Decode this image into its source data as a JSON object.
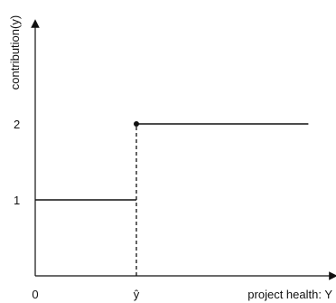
{
  "chart_data": {
    "type": "line",
    "xlabel": "project health: Y",
    "ylabel": "contribution(y)",
    "x_ticks": [
      {
        "value": 0,
        "label": "0"
      },
      {
        "value": 1,
        "label": "ŷ"
      }
    ],
    "y_ticks": [
      {
        "value": 1,
        "label": "1"
      },
      {
        "value": 2,
        "label": "2"
      }
    ],
    "xlim": [
      0,
      3
    ],
    "ylim": [
      0,
      2.6
    ],
    "series": [
      {
        "segments": [
          {
            "x": [
              0,
              1
            ],
            "y": [
              1,
              1
            ]
          },
          {
            "x": [
              1,
              2.7
            ],
            "y": [
              2,
              2
            ]
          }
        ],
        "jump": {
          "x": 1,
          "y_from": 0,
          "y_to": 2,
          "style": "dashed"
        },
        "marker": {
          "x": 1,
          "y": 2
        }
      }
    ],
    "grid": false,
    "colors": {
      "line": "#111111"
    }
  }
}
